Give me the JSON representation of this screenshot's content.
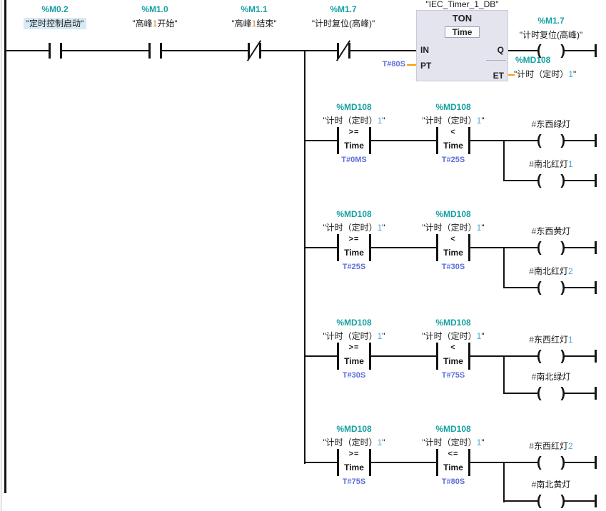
{
  "colors": {
    "address_teal": "#17a0a3",
    "time_constant_blue": "#5e6fd8",
    "tag_digit_blue": "#4aa8d8",
    "tag_digit_orange": "#c9862f",
    "pin_wire_orange": "#ff9800",
    "selection_highlight": "#d7eaf6",
    "block_background": "#e4e4ee"
  },
  "ladder": {
    "contacts": [
      {
        "address": "%M0.2",
        "label": "\"定时控制启动\"",
        "type": "NO"
      },
      {
        "address": "%M1.0",
        "label": "\"高峰1开始\"",
        "type": "NO"
      },
      {
        "address": "%M1.1",
        "label": "\"高峰1结束\"",
        "type": "NC"
      },
      {
        "address": "%M1.7",
        "label": "\"计时复位(高峰)\"",
        "type": "NC"
      }
    ],
    "timer": {
      "db_name": "\"IEC_Timer_1_DB\"",
      "block_type": "TON",
      "data_type": "Time",
      "pin_in": "IN",
      "pin_pt": "PT",
      "pin_q": "Q",
      "pin_et": "ET",
      "pt_value": "T#80S",
      "et_address": "%MD108",
      "et_label": "\"计时（定时）1\""
    },
    "main_coil": {
      "address": "%M1.7",
      "label": "\"计时复位(高峰)\""
    },
    "compare_rungs": [
      {
        "cmp1": {
          "address": "%MD108",
          "label": "\"计时（定时）1\"",
          "op": ">=",
          "dtype": "Time",
          "value": "T#0MS"
        },
        "cmp2": {
          "address": "%MD108",
          "label": "\"计时（定时）1\"",
          "op": "<",
          "dtype": "Time",
          "value": "T#25S"
        },
        "coil1_label": "#东西绿灯",
        "coil2_label": "#南北红灯1"
      },
      {
        "cmp1": {
          "address": "%MD108",
          "label": "\"计时（定时）1\"",
          "op": ">=",
          "dtype": "Time",
          "value": "T#25S"
        },
        "cmp2": {
          "address": "%MD108",
          "label": "\"计时（定时）1\"",
          "op": "<",
          "dtype": "Time",
          "value": "T#30S"
        },
        "coil1_label": "#东西黄灯",
        "coil2_label": "#南北红灯2"
      },
      {
        "cmp1": {
          "address": "%MD108",
          "label": "\"计时（定时）1\"",
          "op": ">=",
          "dtype": "Time",
          "value": "T#30S"
        },
        "cmp2": {
          "address": "%MD108",
          "label": "\"计时（定时）1\"",
          "op": "<",
          "dtype": "Time",
          "value": "T#75S"
        },
        "coil1_label": "#东西红灯1",
        "coil2_label": "#南北绿灯"
      },
      {
        "cmp1": {
          "address": "%MD108",
          "label": "\"计时（定时）1\"",
          "op": ">=",
          "dtype": "Time",
          "value": "T#75S"
        },
        "cmp2": {
          "address": "%MD108",
          "label": "\"计时（定时）1\"",
          "op": "<=",
          "dtype": "Time",
          "value": "T#80S"
        },
        "coil1_label": "#东西红灯2",
        "coil2_label": "#南北黄灯"
      }
    ]
  }
}
